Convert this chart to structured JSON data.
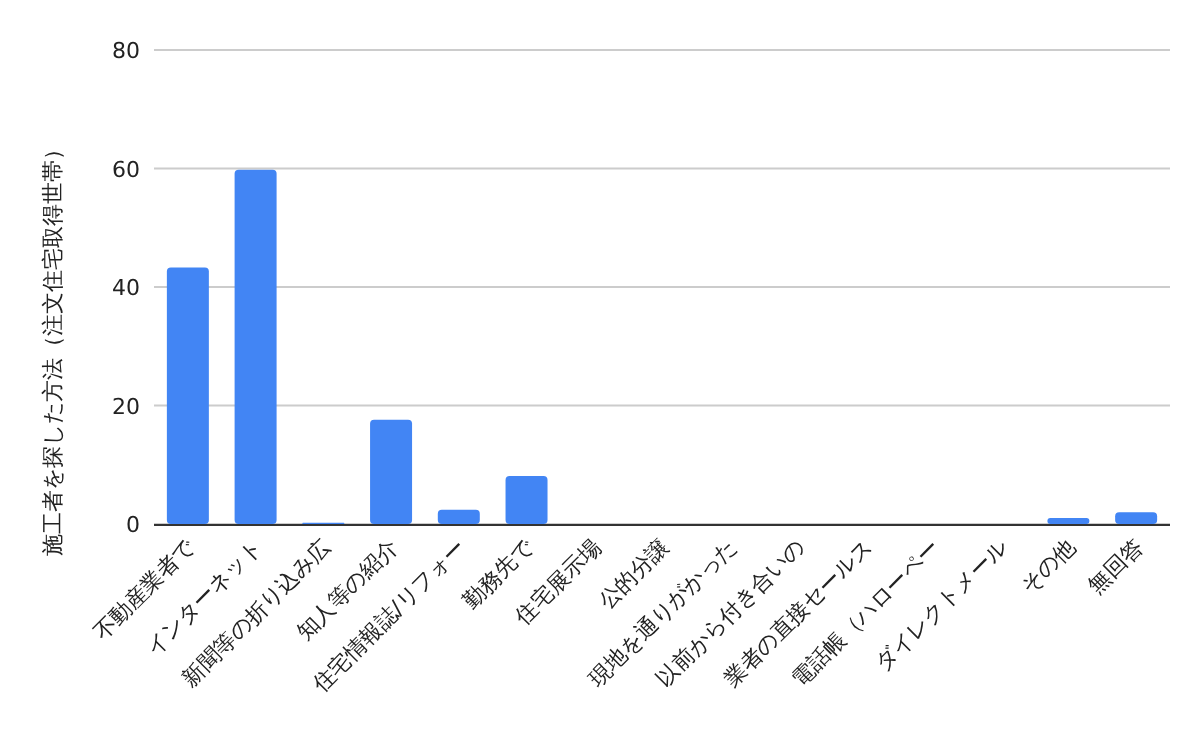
{
  "chart_data": {
    "type": "bar",
    "ylabel": "施工者を探した方法（注文住宅取得世帯）",
    "categories": [
      "不動産業者で",
      "インターネット",
      "新聞等の折り込み広",
      "知人等の紹介",
      "住宅情報誌/リフォー",
      "勤務先で",
      "住宅展示場",
      "公的分譲",
      "現地を通りがかった",
      "以前から付き合いの",
      "業者の直接セールス",
      "電話帳（ハローペー",
      "ダイレクトメール",
      "その他",
      "無回答"
    ],
    "values": [
      43.3,
      59.8,
      0.2,
      17.6,
      2.4,
      8.1,
      0,
      0,
      0,
      0,
      0,
      0,
      0,
      1,
      2
    ],
    "color": "#4285f4",
    "ylim": [
      0,
      80
    ],
    "yticks": [
      0,
      20,
      40,
      60,
      80
    ],
    "grid": "y"
  }
}
